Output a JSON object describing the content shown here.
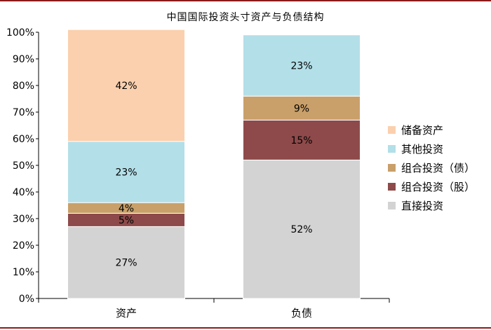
{
  "chart_data": {
    "type": "bar",
    "stacked": true,
    "title": "中国国际投资头寸资产与负债结构",
    "categories": [
      "资产",
      "负债"
    ],
    "series": [
      {
        "name": "直接投资",
        "color": "#d3d3d3",
        "values": [
          27,
          52
        ],
        "labels": [
          "27%",
          "52%"
        ]
      },
      {
        "name": "组合投资（股）",
        "color": "#8e4a4a",
        "values": [
          5,
          15
        ],
        "labels": [
          "5%",
          "15%"
        ]
      },
      {
        "name": "组合投资（债）",
        "color": "#c9a06a",
        "values": [
          4,
          9
        ],
        "labels": [
          "4%",
          "9%"
        ]
      },
      {
        "name": "其他投资",
        "color": "#b3dfe8",
        "values": [
          23,
          23
        ],
        "labels": [
          "23%",
          "23%"
        ]
      },
      {
        "name": "储备资产",
        "color": "#fbd0ae",
        "values": [
          42,
          0
        ],
        "labels": [
          "42%",
          ""
        ]
      }
    ],
    "ylim": [
      0,
      100
    ],
    "yticks": [
      "0%",
      "10%",
      "20%",
      "30%",
      "40%",
      "50%",
      "60%",
      "70%",
      "80%",
      "90%",
      "100%"
    ],
    "grid": false,
    "legend_position": "right"
  }
}
